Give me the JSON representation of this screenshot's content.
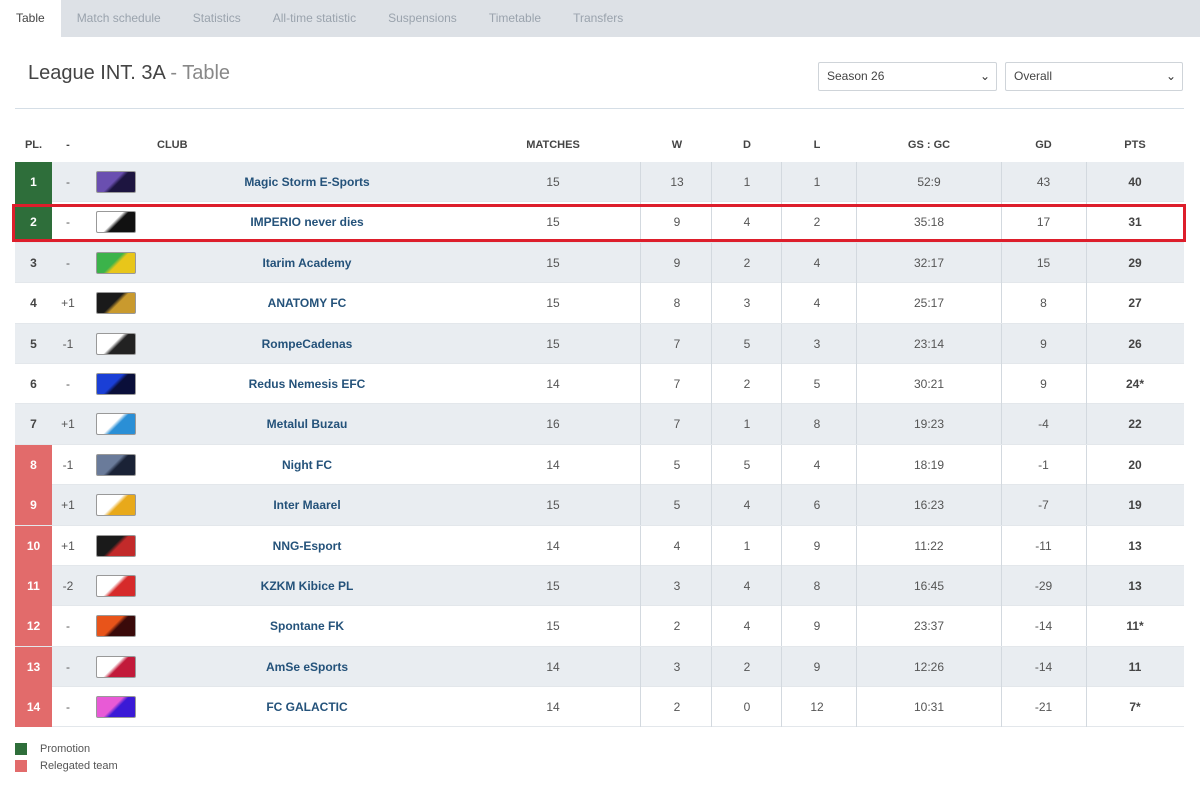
{
  "tabs": [
    {
      "label": "Table",
      "active": true
    },
    {
      "label": "Match schedule"
    },
    {
      "label": "Statistics"
    },
    {
      "label": "All-time statistic"
    },
    {
      "label": "Suspensions"
    },
    {
      "label": "Timetable"
    },
    {
      "label": "Transfers"
    }
  ],
  "header": {
    "title": "League INT. 3A",
    "subtitle": " - Table"
  },
  "filters": {
    "season": "Season 26",
    "scope": "Overall"
  },
  "columns": {
    "pl": "PL.",
    "change": "-",
    "club": "CLUB",
    "matches": "MATCHES",
    "w": "W",
    "d": "D",
    "l": "L",
    "goals": "GS : GC",
    "gd": "GD",
    "pts": "PTS"
  },
  "colors": {
    "promotion": "#2e6e3a",
    "relegated": "#e26b6b",
    "highlight": "#dd1e2b"
  },
  "rows": [
    {
      "pos": "1",
      "change": "-",
      "club": "Magic Storm E-Sports",
      "matches": "15",
      "w": "13",
      "d": "1",
      "l": "1",
      "goals": "52:9",
      "gd": "43",
      "pts": "40",
      "zone": "promo",
      "logo": [
        "#6a4fb0",
        "#1d1540"
      ]
    },
    {
      "pos": "2",
      "change": "-",
      "club": "IMPERIO never dies",
      "matches": "15",
      "w": "9",
      "d": "4",
      "l": "2",
      "goals": "35:18",
      "gd": "17",
      "pts": "31",
      "zone": "promo",
      "logo": [
        "#ffffff",
        "#111111"
      ]
    },
    {
      "pos": "3",
      "change": "-",
      "club": "Itarim Academy",
      "matches": "15",
      "w": "9",
      "d": "2",
      "l": "4",
      "goals": "32:17",
      "gd": "15",
      "pts": "29",
      "zone": "",
      "logo": [
        "#3bb34a",
        "#e8c61a"
      ]
    },
    {
      "pos": "4",
      "change": "+1",
      "club": "ANATOMY FC",
      "matches": "15",
      "w": "8",
      "d": "3",
      "l": "4",
      "goals": "25:17",
      "gd": "8",
      "pts": "27",
      "zone": "",
      "logo": [
        "#1a1a1a",
        "#c99a2e"
      ]
    },
    {
      "pos": "5",
      "change": "-1",
      "club": "RompeCadenas",
      "matches": "15",
      "w": "7",
      "d": "5",
      "l": "3",
      "goals": "23:14",
      "gd": "9",
      "pts": "26",
      "zone": "",
      "logo": [
        "#ffffff",
        "#222222"
      ]
    },
    {
      "pos": "6",
      "change": "-",
      "club": "Redus Nemesis EFC",
      "matches": "14",
      "w": "7",
      "d": "2",
      "l": "5",
      "goals": "30:21",
      "gd": "9",
      "pts": "24*",
      "zone": "",
      "logo": [
        "#1a3fd6",
        "#0a0f3a"
      ]
    },
    {
      "pos": "7",
      "change": "+1",
      "club": "Metalul Buzau",
      "matches": "16",
      "w": "7",
      "d": "1",
      "l": "8",
      "goals": "19:23",
      "gd": "-4",
      "pts": "22",
      "zone": "",
      "logo": [
        "#ffffff",
        "#2a8fd6"
      ]
    },
    {
      "pos": "8",
      "change": "-1",
      "club": "Night FC",
      "matches": "14",
      "w": "5",
      "d": "5",
      "l": "4",
      "goals": "18:19",
      "gd": "-1",
      "pts": "20",
      "zone": "releg",
      "logo": [
        "#6a7b9a",
        "#1a2236"
      ]
    },
    {
      "pos": "9",
      "change": "+1",
      "club": "Inter Maarel",
      "matches": "15",
      "w": "5",
      "d": "4",
      "l": "6",
      "goals": "16:23",
      "gd": "-7",
      "pts": "19",
      "zone": "releg",
      "logo": [
        "#ffffff",
        "#e8a91a"
      ]
    },
    {
      "pos": "10",
      "change": "+1",
      "club": "NNG-Esport",
      "matches": "14",
      "w": "4",
      "d": "1",
      "l": "9",
      "goals": "11:22",
      "gd": "-11",
      "pts": "13",
      "zone": "releg",
      "logo": [
        "#1a1a1a",
        "#c22a2a"
      ]
    },
    {
      "pos": "11",
      "change": "-2",
      "club": "KZKM Kibice PL",
      "matches": "15",
      "w": "3",
      "d": "4",
      "l": "8",
      "goals": "16:45",
      "gd": "-29",
      "pts": "13",
      "zone": "releg",
      "logo": [
        "#ffffff",
        "#d62a2a"
      ]
    },
    {
      "pos": "12",
      "change": "-",
      "club": "Spontane FK",
      "matches": "15",
      "w": "2",
      "d": "4",
      "l": "9",
      "goals": "23:37",
      "gd": "-14",
      "pts": "11*",
      "zone": "releg",
      "logo": [
        "#e8541a",
        "#3a0a0a"
      ]
    },
    {
      "pos": "13",
      "change": "-",
      "club": "AmSe eSports",
      "matches": "14",
      "w": "3",
      "d": "2",
      "l": "9",
      "goals": "12:26",
      "gd": "-14",
      "pts": "11",
      "zone": "releg",
      "logo": [
        "#ffffff",
        "#c21a3a"
      ]
    },
    {
      "pos": "14",
      "change": "-",
      "club": "FC GALACTIC",
      "matches": "14",
      "w": "2",
      "d": "0",
      "l": "12",
      "goals": "10:31",
      "gd": "-21",
      "pts": "7*",
      "zone": "releg",
      "logo": [
        "#e85ad6",
        "#3a1ad6"
      ]
    }
  ],
  "legend": {
    "promotion": "Promotion",
    "relegated": "Relegated team"
  }
}
